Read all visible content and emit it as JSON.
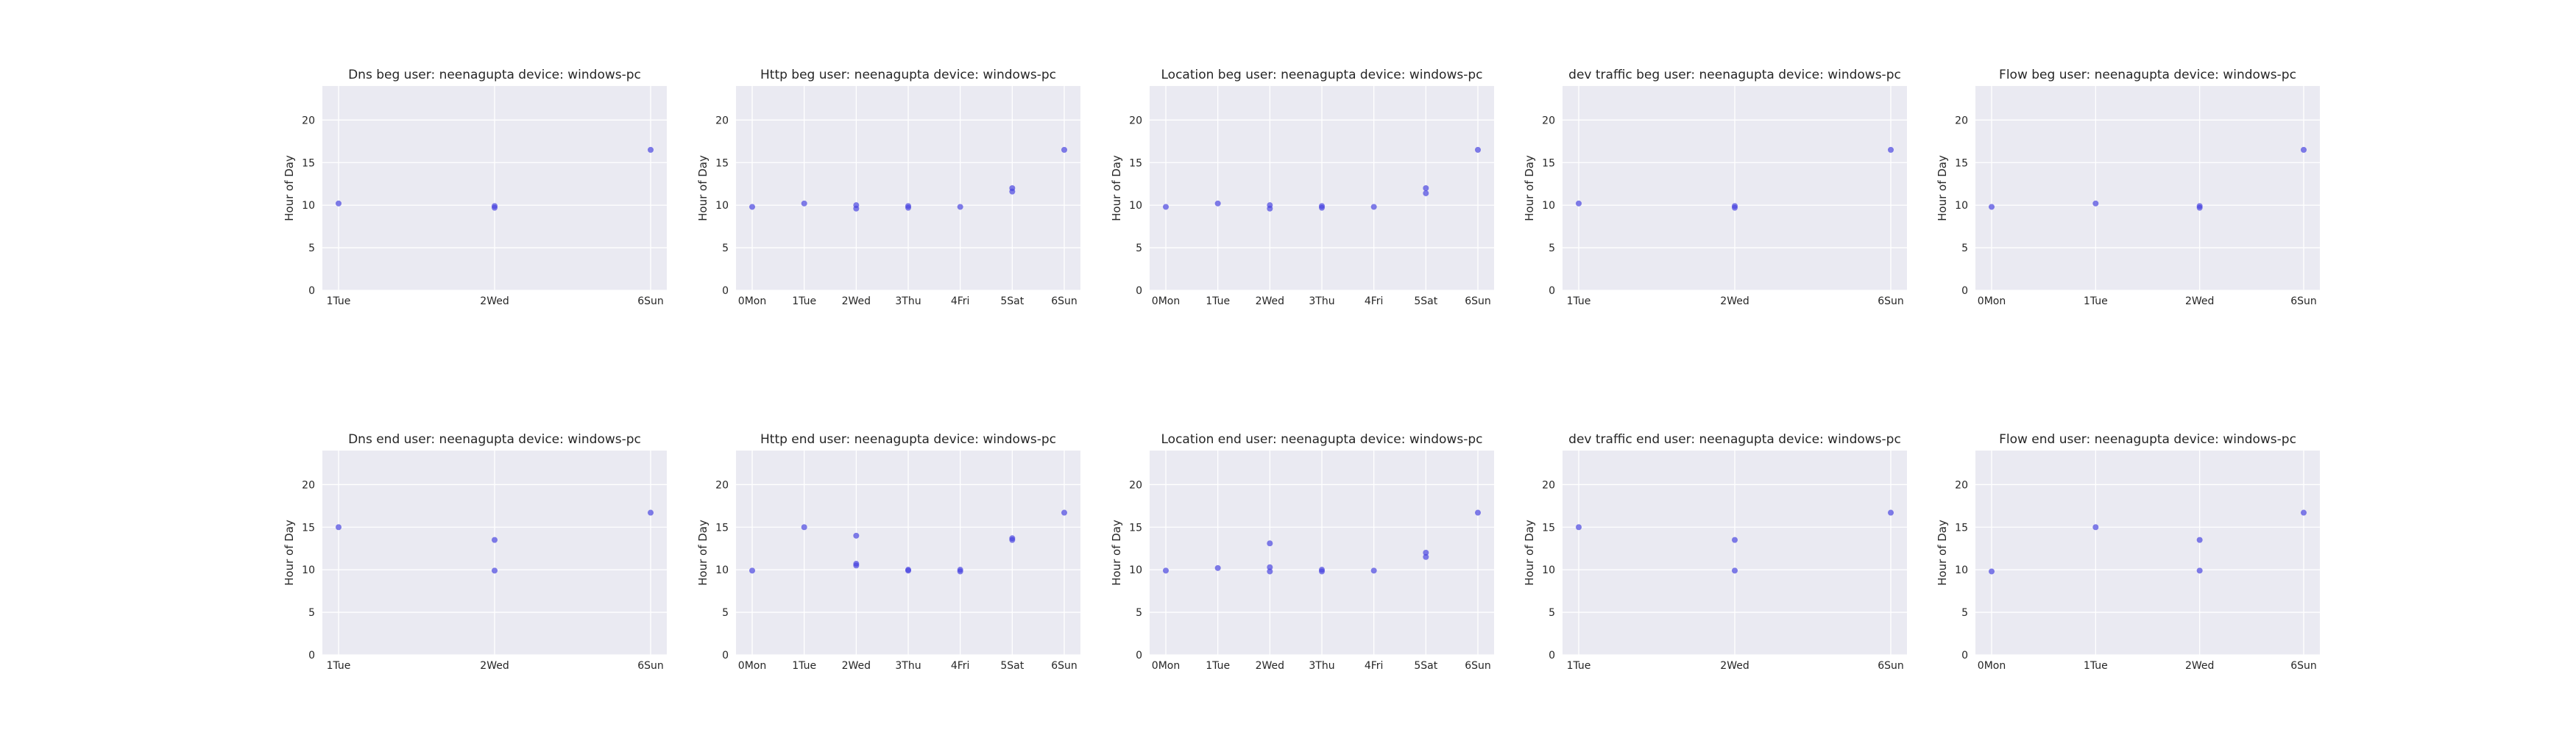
{
  "ylabel": "Hour of Day",
  "ylim": [
    0,
    24
  ],
  "yticks": [
    0,
    5,
    10,
    15,
    20
  ],
  "point_color": "#4a46e0",
  "plot_bg": "#eaeaf2",
  "chart_data": [
    {
      "type": "scatter",
      "title": "Dns beg user: neenagupta device: windows-pc",
      "x_categories": [
        "1Tue",
        "2Wed",
        "6Sun"
      ],
      "points": [
        {
          "x": "1Tue",
          "y": 10.2
        },
        {
          "x": "2Wed",
          "y": 9.7
        },
        {
          "x": "2Wed",
          "y": 9.9
        },
        {
          "x": "6Sun",
          "y": 16.5
        }
      ]
    },
    {
      "type": "scatter",
      "title": "Http beg user: neenagupta device: windows-pc",
      "x_categories": [
        "0Mon",
        "1Tue",
        "2Wed",
        "3Thu",
        "4Fri",
        "5Sat",
        "6Sun"
      ],
      "points": [
        {
          "x": "0Mon",
          "y": 9.8
        },
        {
          "x": "1Tue",
          "y": 10.2
        },
        {
          "x": "2Wed",
          "y": 9.6
        },
        {
          "x": "2Wed",
          "y": 10.0
        },
        {
          "x": "3Thu",
          "y": 9.7
        },
        {
          "x": "3Thu",
          "y": 9.9
        },
        {
          "x": "4Fri",
          "y": 9.8
        },
        {
          "x": "5Sat",
          "y": 11.6
        },
        {
          "x": "5Sat",
          "y": 12.0
        },
        {
          "x": "6Sun",
          "y": 16.5
        }
      ]
    },
    {
      "type": "scatter",
      "title": "Location beg user: neenagupta device: windows-pc",
      "x_categories": [
        "0Mon",
        "1Tue",
        "2Wed",
        "3Thu",
        "4Fri",
        "5Sat",
        "6Sun"
      ],
      "points": [
        {
          "x": "0Mon",
          "y": 9.8
        },
        {
          "x": "1Tue",
          "y": 10.2
        },
        {
          "x": "2Wed",
          "y": 9.6
        },
        {
          "x": "2Wed",
          "y": 10.0
        },
        {
          "x": "3Thu",
          "y": 9.7
        },
        {
          "x": "3Thu",
          "y": 9.9
        },
        {
          "x": "4Fri",
          "y": 9.8
        },
        {
          "x": "5Sat",
          "y": 11.4
        },
        {
          "x": "5Sat",
          "y": 12.0
        },
        {
          "x": "6Sun",
          "y": 16.5
        }
      ]
    },
    {
      "type": "scatter",
      "title": "dev traffic beg user: neenagupta device: windows-pc",
      "x_categories": [
        "1Tue",
        "2Wed",
        "6Sun"
      ],
      "points": [
        {
          "x": "1Tue",
          "y": 10.2
        },
        {
          "x": "2Wed",
          "y": 9.7
        },
        {
          "x": "2Wed",
          "y": 9.9
        },
        {
          "x": "6Sun",
          "y": 16.5
        }
      ]
    },
    {
      "type": "scatter",
      "title": "Flow beg user: neenagupta device: windows-pc",
      "x_categories": [
        "0Mon",
        "1Tue",
        "2Wed",
        "6Sun"
      ],
      "points": [
        {
          "x": "0Mon",
          "y": 9.8
        },
        {
          "x": "1Tue",
          "y": 10.2
        },
        {
          "x": "2Wed",
          "y": 9.7
        },
        {
          "x": "2Wed",
          "y": 9.9
        },
        {
          "x": "6Sun",
          "y": 16.5
        }
      ]
    },
    {
      "type": "scatter",
      "title": "Dns end user: neenagupta device: windows-pc",
      "x_categories": [
        "1Tue",
        "2Wed",
        "6Sun"
      ],
      "points": [
        {
          "x": "1Tue",
          "y": 15.0
        },
        {
          "x": "2Wed",
          "y": 13.5
        },
        {
          "x": "2Wed",
          "y": 9.9
        },
        {
          "x": "6Sun",
          "y": 16.7
        }
      ]
    },
    {
      "type": "scatter",
      "title": "Http end user: neenagupta device: windows-pc",
      "x_categories": [
        "0Mon",
        "1Tue",
        "2Wed",
        "3Thu",
        "4Fri",
        "5Sat",
        "6Sun"
      ],
      "points": [
        {
          "x": "0Mon",
          "y": 9.9
        },
        {
          "x": "1Tue",
          "y": 15.0
        },
        {
          "x": "2Wed",
          "y": 14.0
        },
        {
          "x": "2Wed",
          "y": 10.5
        },
        {
          "x": "2Wed",
          "y": 10.7
        },
        {
          "x": "3Thu",
          "y": 9.9
        },
        {
          "x": "3Thu",
          "y": 10.0
        },
        {
          "x": "4Fri",
          "y": 9.8
        },
        {
          "x": "4Fri",
          "y": 10.0
        },
        {
          "x": "5Sat",
          "y": 13.5
        },
        {
          "x": "5Sat",
          "y": 13.7
        },
        {
          "x": "6Sun",
          "y": 16.7
        }
      ]
    },
    {
      "type": "scatter",
      "title": "Location end user: neenagupta device: windows-pc",
      "x_categories": [
        "0Mon",
        "1Tue",
        "2Wed",
        "3Thu",
        "4Fri",
        "5Sat",
        "6Sun"
      ],
      "points": [
        {
          "x": "0Mon",
          "y": 9.9
        },
        {
          "x": "1Tue",
          "y": 10.2
        },
        {
          "x": "2Wed",
          "y": 13.1
        },
        {
          "x": "2Wed",
          "y": 10.3
        },
        {
          "x": "2Wed",
          "y": 9.8
        },
        {
          "x": "3Thu",
          "y": 9.8
        },
        {
          "x": "3Thu",
          "y": 10.0
        },
        {
          "x": "4Fri",
          "y": 9.9
        },
        {
          "x": "5Sat",
          "y": 11.5
        },
        {
          "x": "5Sat",
          "y": 12.0
        },
        {
          "x": "6Sun",
          "y": 16.7
        }
      ]
    },
    {
      "type": "scatter",
      "title": "dev traffic end user: neenagupta device: windows-pc",
      "x_categories": [
        "1Tue",
        "2Wed",
        "6Sun"
      ],
      "points": [
        {
          "x": "1Tue",
          "y": 15.0
        },
        {
          "x": "2Wed",
          "y": 13.5
        },
        {
          "x": "2Wed",
          "y": 9.9
        },
        {
          "x": "6Sun",
          "y": 16.7
        }
      ]
    },
    {
      "type": "scatter",
      "title": "Flow end user: neenagupta device: windows-pc",
      "x_categories": [
        "0Mon",
        "1Tue",
        "2Wed",
        "6Sun"
      ],
      "points": [
        {
          "x": "0Mon",
          "y": 9.8
        },
        {
          "x": "1Tue",
          "y": 15.0
        },
        {
          "x": "2Wed",
          "y": 13.5
        },
        {
          "x": "2Wed",
          "y": 9.9
        },
        {
          "x": "6Sun",
          "y": 16.7
        }
      ]
    }
  ]
}
